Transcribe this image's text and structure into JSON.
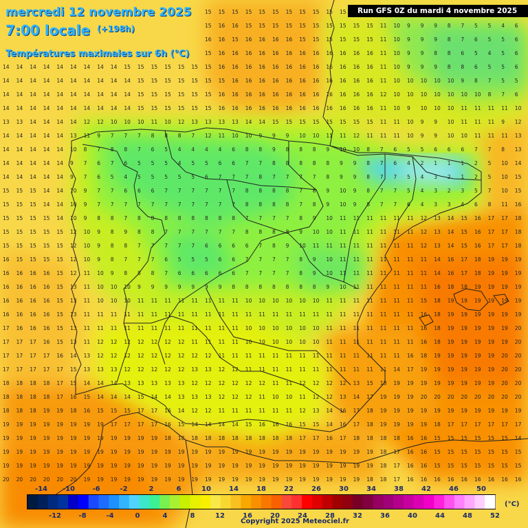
{
  "header": {
    "date_line": "mercredi 12 novembre 2025",
    "time_line": "7:00 locale",
    "lead_time": "(+198h)",
    "parameter": "Températures maximales sur 6h (°C)",
    "run_info": "Run GFS 0Z du mardi 4 novembre 2025"
  },
  "footer": {
    "copyright": "Copyright 2025 Meteociel.fr"
  },
  "legend": {
    "unit": "(°C)",
    "top_labels": [
      "-14",
      "-10",
      "-6",
      "-2",
      "2",
      "6",
      "10",
      "14",
      "18",
      "22",
      "26",
      "30",
      "34",
      "38",
      "42",
      "46",
      "50"
    ],
    "bottom_labels": [
      "-12",
      "-8",
      "-4",
      "0",
      "4",
      "8",
      "12",
      "16",
      "20",
      "24",
      "28",
      "32",
      "36",
      "40",
      "44",
      "48",
      "52"
    ],
    "colors": [
      "#001a40",
      "#00205a",
      "#002a80",
      "#0033a0",
      "#0000c8",
      "#0000ff",
      "#1a4aff",
      "#1e6cff",
      "#1e90ff",
      "#32b4ff",
      "#50d4ff",
      "#3ce6c8",
      "#3cf096",
      "#78f050",
      "#a8f032",
      "#c8f000",
      "#e6f000",
      "#f8f000",
      "#f8e848",
      "#f8d830",
      "#f8c020",
      "#f8a800",
      "#f89000",
      "#f87800",
      "#f86000",
      "#f84838",
      "#ff3030",
      "#ff0000",
      "#e00000",
      "#c00000",
      "#a00000",
      "#900010",
      "#780028",
      "#800040",
      "#960060",
      "#a00078",
      "#b4008c",
      "#c800a0",
      "#dc00b4",
      "#f000c8",
      "#ff20dc",
      "#ff50f0",
      "#ff80ff",
      "#ffa8ff",
      "#ffd0ff",
      "#ffffff"
    ]
  },
  "grid_values": [
    "13 13 13 13 13 13 14 14 14 14 14 14 15 15 15 15 15 15 15 15 15 15 15 15 15 15 15 15 11 11 11 11 11 11 11 11 11 11 11 11",
    "14 14 14 14 14 14 14 14 14 14 15 15 15 15 15 15 16 16 15 15 15 15 15 15 15 15 15 15 11 10 9 9 9 8 7 5 5 4 6 5",
    "14 14 14 14 14 14 14 14 14 15 15 15 15 15 15 16 16 15 16 16 16 16 15 15 15 15 15 15 11 10 9 9 9 8 7 6 5 5 6 6",
    "14 14 14 14 14 14 14 14 14 15 15 15 15 15 15 15 16 16 16 16 16 16 16 16 16 16 16 16 11 10 9 9 8 8 6 5 4 5 6 6",
    "14 14 14 14 14 14 14 14 14 15 15 15 15 15 15 15 16 16 16 16 16 16 16 16 16 16 16 16 11 10 9 9 9 8 8 6 5 5 6 6",
    "14 14 14 14 14 14 14 14 14 14 15 15 15 15 15 15 15 16 16 16 16 16 16 16 16 16 16 16 11 10 10 10 10 10 9 8 7 5 5 6",
    "14 14 14 14 14 14 14 14 14 14 15 15 15 15 15 15 16 16 16 16 16 16 16 16 16 16 16 16 12 10 10 10 10 10 10 10 8 7 6 9",
    "14 14 14 14 14 14 14 14 14 14 15 15 15 15 15 15 16 16 16 16 16 16 16 16 16 16 16 16 11 10 9 10 10 10 11 11 11 11 10 12",
    "13 13 14 14 14 14 12 12 10 10 10 11 10 12 13 13 13 13 14 14 15 15 15 15 15 15 15 15 11 11 10 9 9 10 11 11 11 9 12 14",
    "14 14 14 14 14 13 11 9 7 7 7 8 8 8 7 12 11 10 10 9 9 9 10 10 11 11 12 11 11 11 10 9 9 10 10 11 11 11 13 14",
    "14 14 14 14 14 10 8 7 8 8 7 6 5 4 4 4 4 6 8 8 9 8 8 8 9 10 10 8 7 6 5 5 6 6 6 7 7 8 13 15",
    "14 14 14 14 14 9 7 6 7 6 5 5 5 4 5 5 6 6 7 7 8 8 8 8 8 9 9 8 7 6 4 2 1 1 1 2 5 10 14 16",
    "14 14 14 14 14 9 7 6 5 4 5 5 5 5 5 6 7 7 7 8 7 7 7 7 8 9 9 8 7 7 5 4 3 2 1 2 5 10 15 17",
    "15 15 15 14 14 10 9 7 7 6 6 6 7 7 7 7 7 7 8 8 8 8 7 8 9 10 9 8 7 7 5 4 3 2 3 5 7 10 15 17",
    "15 15 15 14 14 10 9 7 7 7 7 7 7 7 7 7 7 7 8 8 8 8 7 8 9 10 9 8 7 7 6 4 3 3 4 6 8 11 16 18",
    "15 15 15 15 14 10 9 8 8 7 8 8 8 8 8 8 8 8 7 7 7 7 8 9 10 11 11 11 11 11 11 12 13 14 15 16 17 17 18 19",
    "15 15 15 15 15 12 10 9 8 9 8 8 7 7 7 7 7 7 8 8 8 8 9 10 10 11 11 11 11 11 11 12 13 14 15 16 17 17 18 18",
    "15 15 15 15 15 12 10 9 8 8 7 7 7 7 7 6 6 6 6 7 8 9 10 11 11 11 11 11 11 11 11 12 13 14 15 16 17 17 18 18",
    "16 15 15 15 15 12 10 9 8 7 7 7 6 5 5 5 6 6 7 7 7 7 8 9 10 11 11 11 11 11 11 11 14 16 17 18 19 19 19 19",
    "16 16 16 16 15 12 11 10 9 8 8 8 7 6 6 6 6 6 7 7 7 7 8 9 10 11 11 11 11 11 11 11 14 16 17 18 19 19 19 19",
    "16 16 16 16 15 13 11 10 10 10 9 9 9 9 9 9 9 8 8 8 8 8 8 8 9 10 11 11 11 11 11 11 16 18 18 19 19 19 19 20",
    "16 16 16 16 15 13 11 10 10 10 11 11 11 11 11 11 11 11 10 10 10 10 10 10 11 11 11 11 11 11 11 15 18 19 19 19 19 19 19 20",
    "16 16 16 16 15 13 11 11 11 11 11 11 11 11 11 11 11 11 11 11 11 11 11 11 11 11 11 11 11 11 11 16 18 19 19 19 19 19 19 20",
    "17 16 16 16 15 13 11 11 11 11 11 11 11 11 11 11 11 11 10 10 10 10 10 10 11 11 11 11 11 11 11 16 18 19 19 19 19 19 20 20",
    "17 17 17 16 15 13 11 12 12 12 12 12 12 12 11 11 11 11 10 10 10 10 10 10 11 11 11 11 11 11 11 16 18 19 19 19 19 19 20 20",
    "17 17 17 17 16 14 13 12 12 12 12 12 12 12 12 12 11 11 11 11 11 11 11 11 11 11 11 11 11 11 16 18 19 19 19 19 19 20 20 20",
    "17 17 17 17 17 15 13 13 13 12 12 12 12 12 13 13 12 12 11 11 11 11 11 11 11 11 11 11 11 14 17 19 19 19 19 19 19 20 20 20",
    "18 18 18 18 17 15 14 14 14 13 13 13 13 13 12 12 12 12 12 12 11 11 12 12 12 12 13 15 18 19 19 19 19 19 19 19 19 20 20 20",
    "18 18 18 18 17 16 15 14 14 14 15 14 14 13 13 13 12 12 12 11 10 10 11 12 12 13 14 17 19 19 19 20 20 20 20 20 20 20 20 20",
    "18 18 18 19 19 18 16 15 15 15 17 17 16 14 12 12 11 11 11 11 11 11 12 13 14 16 17 18 19 19 19 19 19 19 19 19 19 19 19 19",
    "19 19 19 19 19 19 19 19 17 17 17 17 16 15 14 14 14 14 15 16 16 16 15 15 14 16 17 18 19 19 19 19 18 17 17 17 17 17 17 17",
    "19 19 19 19 19 19 19 19 19 19 19 19 18 18 18 18 18 18 18 18 18 18 17 17 16 17 18 18 18 18 16 16 15 15 15 15 15 15 14 14",
    "19 19 19 19 19 19 19 19 19 19 19 19 19 19 19 19 19 19 19 19 19 19 19 19 19 19 19 19 18 17 16 16 15 15 15 15 15 15 15 15",
    "19 19 19 19 19 19 19 19 19 19 19 19 19 19 19 19 19 19 19 19 19 19 19 19 19 19 19 19 18 17 16 16 15 15 15 15 15 15 15 15",
    "20 20 20 20 20 20 19 19 19 19 19 19 19 19 19 19 19 19 19 19 19 19 19 19 19 19 19 18 18 17 16 16 16 16 16 16 16 16 16 16",
    "20 20 20 20 20 20 20 20 20 19 19 19 19 19 19 19 19 19 19 19 19 19 19 19 19 19 19 18 17 17 16 16 16 16 16 16 16 16 16 16",
    "20 20 20 20 20 20 20 20 20 20 20 19 19 19 19 19 19 19 19 19 19 19 19 19 19 19 19 18 17 17 16 16 16 16 16 16 16 16 16 16",
    "20 20 20 20 20 20 20 20 20 20 20 19 19 19 19 19 19 19 19 19 19 19 19 19 19 19 19 19 18 17 16 16 16 16 16 16 16 16 16 16"
  ]
}
